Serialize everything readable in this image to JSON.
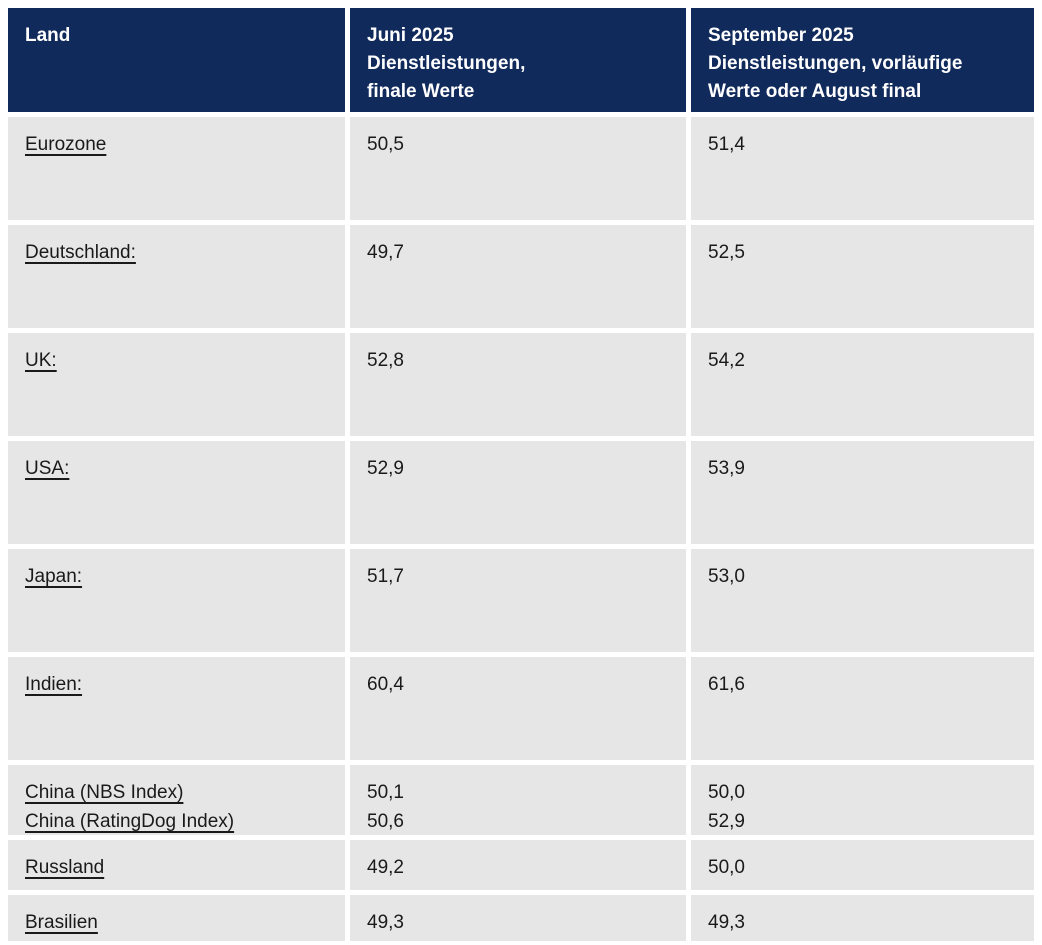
{
  "table": {
    "header": {
      "land": "Land",
      "juni": "Juni 2025\nDienstleistungen,\nfinale Werte",
      "september": "September 2025\nDienstleistungen, vorläufige\nWerte oder August final"
    },
    "rows": [
      {
        "land": "Eurozone",
        "juni": "50,5",
        "september": "51,4"
      },
      {
        "land": "Deutschland:",
        "juni": "49,7",
        "september": "52,5"
      },
      {
        "land": "UK:",
        "juni": "52,8",
        "september": "54,2"
      },
      {
        "land": "USA:",
        "juni": "52,9",
        "september": "53,9"
      },
      {
        "land": "Japan:",
        "juni": "51,7",
        "september": "53,0"
      },
      {
        "land": "Indien:",
        "juni": "60,4",
        "september": "61,6"
      },
      {
        "land_lines": [
          "China (NBS Index)",
          "China (RatingDog Index)"
        ],
        "juni": "50,1\n50,6",
        "september": "50,0\n52,9"
      },
      {
        "land": "Russland",
        "juni": "49,2",
        "september": "50,0"
      },
      {
        "land": "Brasilien",
        "juni": "49,3",
        "september": "49,3"
      }
    ]
  },
  "colors": {
    "header_bg": "#112a5c",
    "header_text": "#ffffff",
    "cell_bg": "#e6e6e6",
    "body_text": "#1a1a1a"
  }
}
